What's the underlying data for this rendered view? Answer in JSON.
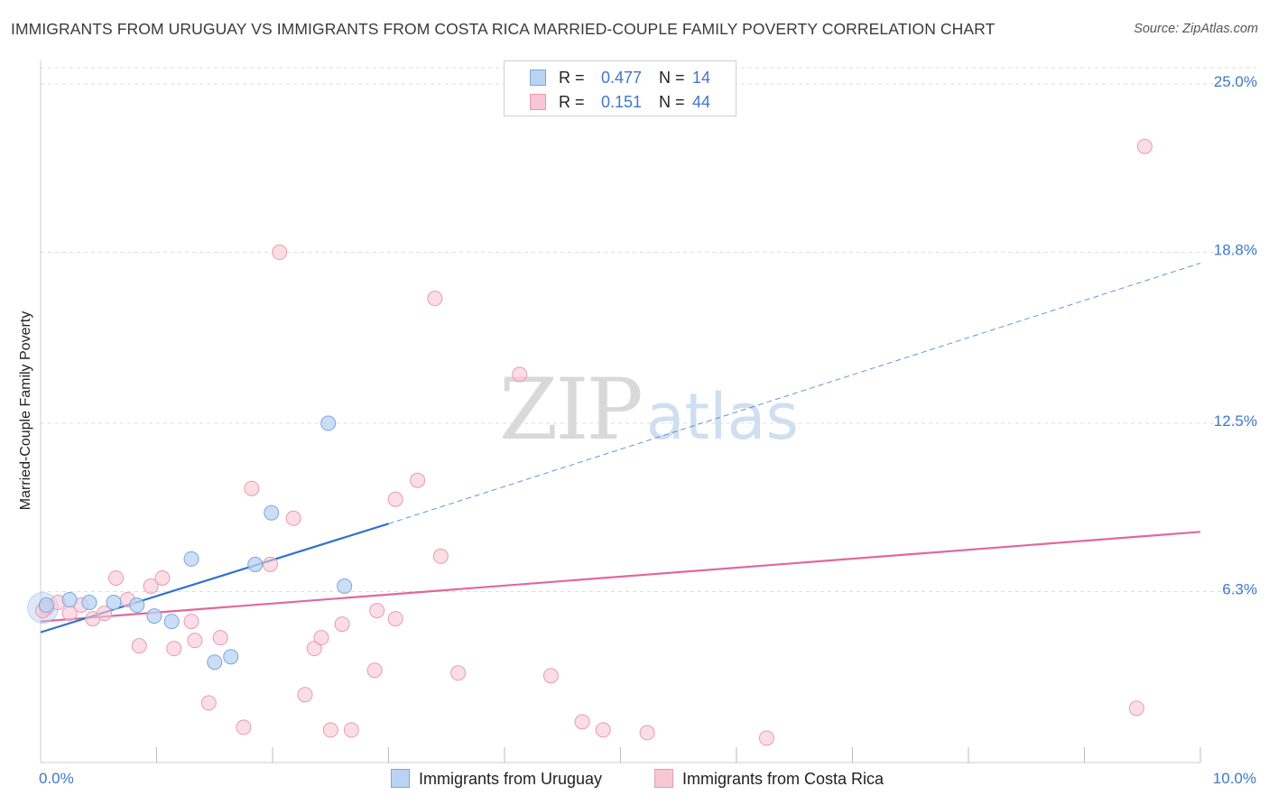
{
  "title": "IMMIGRANTS FROM URUGUAY VS IMMIGRANTS FROM COSTA RICA MARRIED-COUPLE FAMILY POVERTY CORRELATION CHART",
  "source": "Source: ZipAtlas.com",
  "watermark": {
    "zip": "ZIP",
    "atlas": "atlas"
  },
  "colors": {
    "uruguay_fill": "#b9d3f3",
    "uruguay_stroke": "#7aa6dd",
    "uruguay_line": "#2f72cf",
    "costarica_fill": "#f8c6d5",
    "costarica_stroke": "#e99ab3",
    "costarica_line": "#e0699a",
    "axis_text": "#3f78c8",
    "grid": "#dddddd"
  },
  "legend": {
    "rows": [
      {
        "r_label": "R =",
        "r_value": "0.477",
        "n_label": "N =",
        "n_value": "14"
      },
      {
        "r_label": "R =",
        "r_value": "0.151",
        "n_label": "N =",
        "n_value": "44"
      }
    ],
    "bottom": [
      "Immigrants from Uruguay",
      "Immigrants from Costa Rica"
    ]
  },
  "chart_data": {
    "type": "scatter",
    "title": "IMMIGRANTS FROM URUGUAY VS IMMIGRANTS FROM COSTA RICA MARRIED-COUPLE FAMILY POVERTY CORRELATION CHART",
    "xlabel": "",
    "ylabel": "Married-Couple Family Poverty",
    "xlim": [
      0,
      10
    ],
    "ylim": [
      0,
      25.6
    ],
    "x_tick_labels": [
      "0.0%",
      "10.0%"
    ],
    "y_ticks": [
      6.3,
      12.5,
      18.8,
      25.0
    ],
    "y_tick_labels": [
      "6.3%",
      "12.5%",
      "18.8%",
      "25.0%"
    ],
    "grid": true,
    "legend_position": "top-center",
    "series": [
      {
        "name": "Immigrants from Uruguay",
        "R": 0.477,
        "N": 14,
        "points": [
          [
            0.05,
            5.8
          ],
          [
            0.25,
            6.0
          ],
          [
            0.42,
            5.9
          ],
          [
            0.63,
            5.9
          ],
          [
            0.83,
            5.8
          ],
          [
            0.98,
            5.4
          ],
          [
            1.13,
            5.2
          ],
          [
            1.3,
            7.5
          ],
          [
            1.5,
            3.7
          ],
          [
            1.64,
            3.9
          ],
          [
            1.85,
            7.3
          ],
          [
            1.99,
            9.2
          ],
          [
            2.48,
            12.5
          ],
          [
            2.62,
            6.5
          ]
        ],
        "trend": {
          "x0": 0,
          "y0": 4.8,
          "x1": 3.0,
          "y1": 8.8,
          "dashed_to_x": 10,
          "dashed_to_y": 18.4
        }
      },
      {
        "name": "Immigrants from Costa Rica",
        "R": 0.151,
        "N": 44,
        "points": [
          [
            0.05,
            5.7
          ],
          [
            0.15,
            5.9
          ],
          [
            0.25,
            5.5
          ],
          [
            0.35,
            5.8
          ],
          [
            0.45,
            5.3
          ],
          [
            0.55,
            5.5
          ],
          [
            0.65,
            6.8
          ],
          [
            0.75,
            6.0
          ],
          [
            0.85,
            4.3
          ],
          [
            0.95,
            6.5
          ],
          [
            1.05,
            6.8
          ],
          [
            1.15,
            4.2
          ],
          [
            1.3,
            5.2
          ],
          [
            1.33,
            4.5
          ],
          [
            1.45,
            2.2
          ],
          [
            1.55,
            4.6
          ],
          [
            1.75,
            1.3
          ],
          [
            1.82,
            10.1
          ],
          [
            1.98,
            7.3
          ],
          [
            2.06,
            18.8
          ],
          [
            2.18,
            9.0
          ],
          [
            2.28,
            2.5
          ],
          [
            2.36,
            4.2
          ],
          [
            2.42,
            4.6
          ],
          [
            2.5,
            1.2
          ],
          [
            2.68,
            1.2
          ],
          [
            2.6,
            5.1
          ],
          [
            2.88,
            3.4
          ],
          [
            2.9,
            5.6
          ],
          [
            3.06,
            5.3
          ],
          [
            3.06,
            9.7
          ],
          [
            3.25,
            10.4
          ],
          [
            3.4,
            17.1
          ],
          [
            3.45,
            7.6
          ],
          [
            3.6,
            3.3
          ],
          [
            4.13,
            14.3
          ],
          [
            4.4,
            3.2
          ],
          [
            4.67,
            1.5
          ],
          [
            4.85,
            1.2
          ],
          [
            5.23,
            1.1
          ],
          [
            6.26,
            0.9
          ],
          [
            9.45,
            2.0
          ],
          [
            9.52,
            22.7
          ],
          [
            0.02,
            5.6
          ]
        ],
        "trend": {
          "x0": 0,
          "y0": 5.2,
          "x1": 10,
          "y1": 8.5
        }
      }
    ]
  }
}
